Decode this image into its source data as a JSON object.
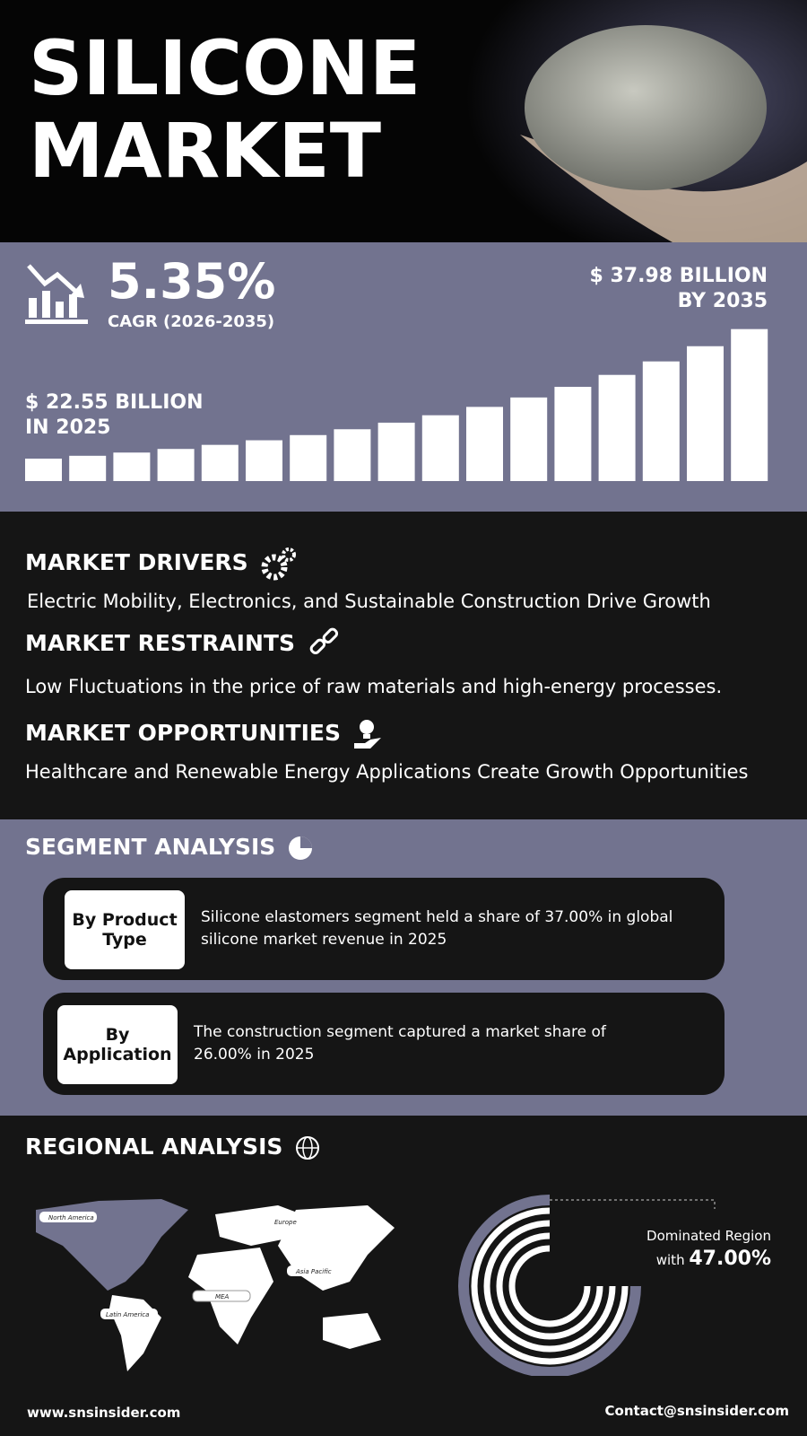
{
  "header": {
    "title_lines": [
      "SILICONE",
      "MARKET"
    ]
  },
  "growth": {
    "cagr": "5.35%",
    "cagr_label": "CAGR (2026-2035)",
    "end_value": "$ 37.98 BILLION",
    "end_year": "BY 2035",
    "start_value": "$ 22.55 BILLION",
    "start_year": "IN 2025"
  },
  "dynamics": [
    {
      "heading": "MARKET DRIVERS",
      "text": "Electric Mobility, Electronics, and Sustainable Construction Drive Growth"
    },
    {
      "heading": "MARKET RESTRAINTS",
      "text": "Low Fluctuations in the price of raw materials and high-energy processes."
    },
    {
      "heading": "MARKET OPPORTUNITIES",
      "text": "Healthcare and Renewable Energy Applications Create Growth Opportunities"
    }
  ],
  "segments": {
    "heading": "SEGMENT ANALYSIS",
    "items": [
      {
        "label": "By Product Type",
        "text": "Silicone elastomers segment held a share of 37.00% in global silicone market revenue in 2025"
      },
      {
        "label": "By Application",
        "text": "The construction segment captured a market share of 26.00% in 2025"
      }
    ]
  },
  "regional": {
    "heading": "REGIONAL ANALYSIS",
    "map_labels": [
      "North America",
      "Europe",
      "Asia Pacific",
      "MEA",
      "Latin America"
    ],
    "dominated_label": "Dominated Region",
    "dominated_prefix": "with",
    "dominated_value": "47.00%"
  },
  "footer": {
    "website": "www.snsinsider.com",
    "contact": "Contact@snsinsider.com"
  }
}
